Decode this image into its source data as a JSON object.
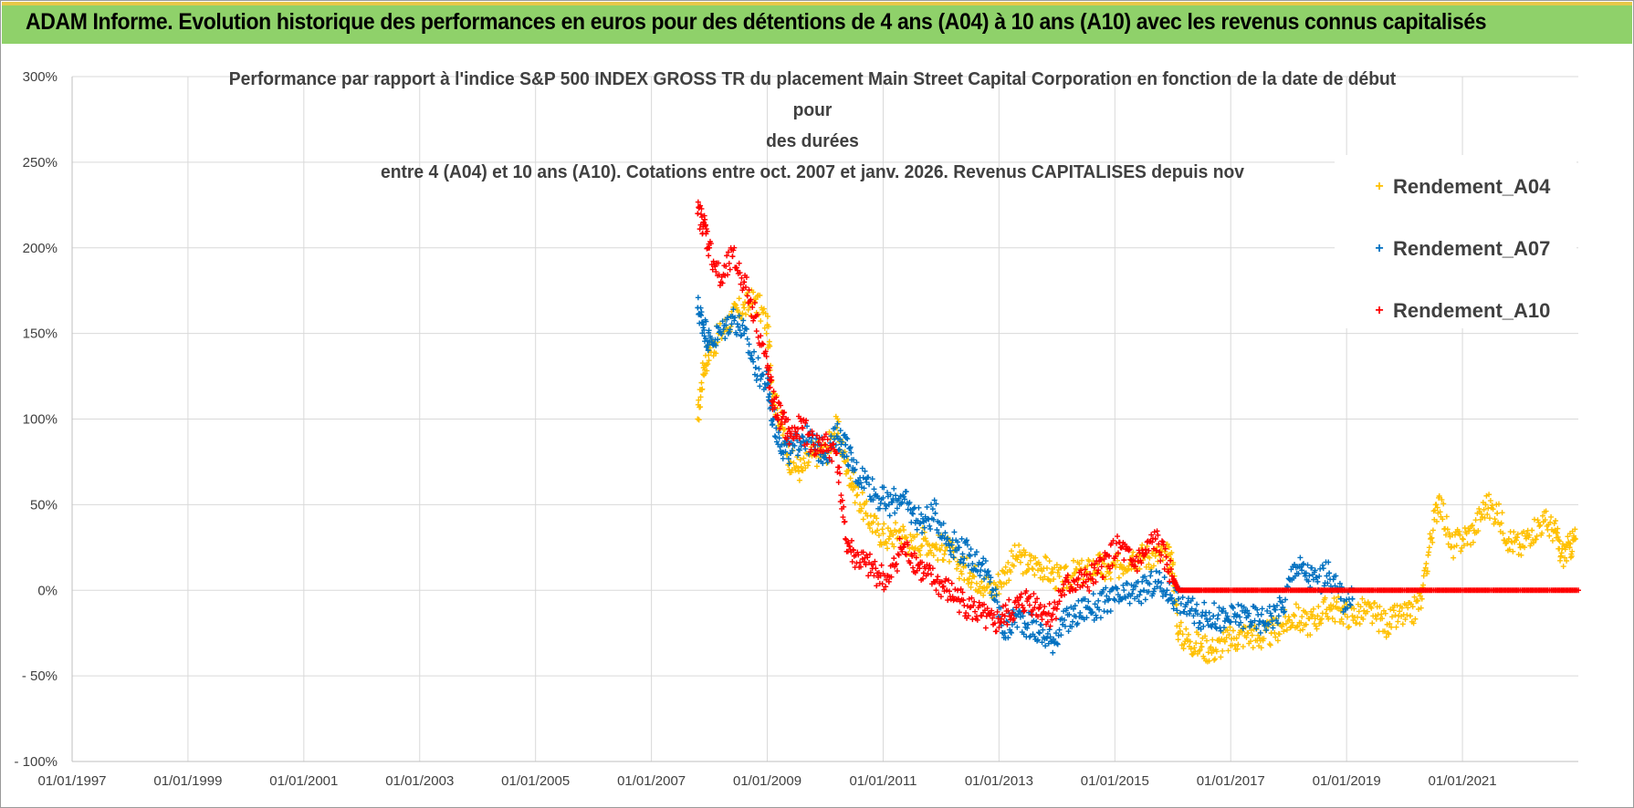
{
  "header": {
    "title": "ADAM Informe. Evolution historique des performances en euros pour des détentions de 4 ans (A04) à 10 ans (A10) avec les revenus connus capitalisés"
  },
  "chart_data": {
    "type": "scatter",
    "title_lines": [
      "Performance par rapport à l'indice S&P 500 INDEX GROSS TR  du placement Main Street Capital Corporation en fonction de la date de début pour",
      "des durées",
      "entre 4 (A04) et 10 ans (A10).  Cotations entre oct. 2007 et janv. 2026.  Revenus CAPITALISES  depuis nov"
    ],
    "xlabel": "",
    "ylabel": "",
    "x_ticks": [
      "01/01/1997",
      "01/01/1999",
      "01/01/2001",
      "01/01/2003",
      "01/01/2005",
      "01/01/2007",
      "01/01/2009",
      "01/01/2011",
      "01/01/2013",
      "01/01/2015",
      "01/01/2017",
      "01/01/2019",
      "01/01/2021"
    ],
    "xlim": [
      1997.0,
      2023.0
    ],
    "y_ticks": [
      "300%",
      "250%",
      "200%",
      "150%",
      "100%",
      "50%",
      "0%",
      "- 50%",
      "- 100%"
    ],
    "ylim": [
      -100,
      300
    ],
    "grid": true,
    "legend_position": "top-right",
    "series": [
      {
        "name": "Rendement_A04",
        "color": "#FFC000",
        "points": [
          [
            2007.8,
            100
          ],
          [
            2007.9,
            130
          ],
          [
            2008.0,
            140
          ],
          [
            2008.2,
            150
          ],
          [
            2008.4,
            160
          ],
          [
            2008.6,
            165
          ],
          [
            2008.8,
            170
          ],
          [
            2009.0,
            155
          ],
          [
            2009.1,
            115
          ],
          [
            2009.25,
            95
          ],
          [
            2009.4,
            75
          ],
          [
            2009.6,
            70
          ],
          [
            2009.8,
            80
          ],
          [
            2010.0,
            80
          ],
          [
            2010.2,
            95
          ],
          [
            2010.35,
            75
          ],
          [
            2010.5,
            60
          ],
          [
            2010.7,
            45
          ],
          [
            2010.9,
            35
          ],
          [
            2011.1,
            30
          ],
          [
            2011.3,
            35
          ],
          [
            2011.5,
            25
          ],
          [
            2011.7,
            30
          ],
          [
            2011.9,
            25
          ],
          [
            2012.1,
            25
          ],
          [
            2012.3,
            15
          ],
          [
            2012.5,
            10
          ],
          [
            2012.7,
            5
          ],
          [
            2012.9,
            0
          ],
          [
            2013.1,
            10
          ],
          [
            2013.3,
            20
          ],
          [
            2013.5,
            15
          ],
          [
            2013.7,
            15
          ],
          [
            2013.9,
            10
          ],
          [
            2014.1,
            5
          ],
          [
            2014.3,
            10
          ],
          [
            2014.5,
            10
          ],
          [
            2014.7,
            15
          ],
          [
            2014.9,
            10
          ],
          [
            2015.1,
            15
          ],
          [
            2015.3,
            20
          ],
          [
            2015.5,
            20
          ],
          [
            2015.7,
            20
          ],
          [
            2015.9,
            20
          ],
          [
            2016.0,
            15
          ],
          [
            2016.1,
            -25
          ],
          [
            2016.3,
            -30
          ],
          [
            2016.5,
            -33
          ],
          [
            2016.7,
            -35
          ],
          [
            2016.9,
            -30
          ],
          [
            2017.1,
            -28
          ],
          [
            2017.3,
            -25
          ],
          [
            2017.5,
            -28
          ],
          [
            2017.7,
            -25
          ],
          [
            2017.9,
            -20
          ],
          [
            2018.1,
            -15
          ],
          [
            2018.3,
            -20
          ],
          [
            2018.5,
            -15
          ],
          [
            2018.7,
            -10
          ],
          [
            2018.9,
            -12
          ],
          [
            2019.1,
            -15
          ],
          [
            2019.3,
            -12
          ],
          [
            2019.5,
            -15
          ],
          [
            2019.7,
            -20
          ],
          [
            2019.9,
            -15
          ],
          [
            2020.1,
            -15
          ],
          [
            2020.3,
            -5
          ],
          [
            2020.45,
            30
          ],
          [
            2020.6,
            55
          ],
          [
            2020.8,
            25
          ],
          [
            2021.0,
            30
          ],
          [
            2021.2,
            35
          ],
          [
            2021.4,
            50
          ],
          [
            2021.6,
            45
          ],
          [
            2021.8,
            30
          ],
          [
            2022.0,
            25
          ],
          [
            2022.2,
            35
          ],
          [
            2022.4,
            40
          ],
          [
            2022.6,
            35
          ],
          [
            2022.7,
            20
          ],
          [
            2022.85,
            25
          ],
          [
            2022.95,
            30
          ]
        ]
      },
      {
        "name": "Rendement_A07",
        "color": "#0070C0",
        "points": [
          [
            2007.8,
            165
          ],
          [
            2007.9,
            155
          ],
          [
            2008.0,
            145
          ],
          [
            2008.2,
            150
          ],
          [
            2008.4,
            160
          ],
          [
            2008.6,
            150
          ],
          [
            2008.8,
            130
          ],
          [
            2009.0,
            120
          ],
          [
            2009.1,
            100
          ],
          [
            2009.25,
            85
          ],
          [
            2009.4,
            80
          ],
          [
            2009.6,
            90
          ],
          [
            2009.8,
            85
          ],
          [
            2010.0,
            80
          ],
          [
            2010.2,
            90
          ],
          [
            2010.35,
            85
          ],
          [
            2010.5,
            70
          ],
          [
            2010.7,
            65
          ],
          [
            2010.9,
            55
          ],
          [
            2011.1,
            50
          ],
          [
            2011.3,
            55
          ],
          [
            2011.5,
            45
          ],
          [
            2011.7,
            40
          ],
          [
            2011.9,
            45
          ],
          [
            2012.1,
            30
          ],
          [
            2012.3,
            25
          ],
          [
            2012.5,
            20
          ],
          [
            2012.7,
            15
          ],
          [
            2012.9,
            0
          ],
          [
            2013.1,
            -25
          ],
          [
            2013.3,
            -15
          ],
          [
            2013.5,
            -20
          ],
          [
            2013.7,
            -25
          ],
          [
            2013.9,
            -30
          ],
          [
            2014.1,
            -20
          ],
          [
            2014.3,
            -15
          ],
          [
            2014.5,
            -10
          ],
          [
            2014.7,
            -10
          ],
          [
            2014.9,
            -5
          ],
          [
            2015.1,
            -5
          ],
          [
            2015.3,
            -2
          ],
          [
            2015.5,
            0
          ],
          [
            2015.7,
            5
          ],
          [
            2015.9,
            0
          ],
          [
            2016.1,
            -5
          ],
          [
            2016.3,
            -12
          ],
          [
            2016.5,
            -15
          ],
          [
            2016.7,
            -15
          ],
          [
            2016.9,
            -18
          ],
          [
            2017.1,
            -15
          ],
          [
            2017.3,
            -15
          ],
          [
            2017.5,
            -18
          ],
          [
            2017.7,
            -15
          ],
          [
            2017.9,
            -10
          ],
          [
            2018.1,
            15
          ],
          [
            2018.3,
            10
          ],
          [
            2018.5,
            5
          ],
          [
            2018.7,
            10
          ],
          [
            2018.9,
            -5
          ],
          [
            2019.1,
            -5
          ]
        ]
      },
      {
        "name": "Rendement_A10",
        "color": "#FF0000",
        "points": [
          [
            2007.8,
            220
          ],
          [
            2007.9,
            215
          ],
          [
            2008.0,
            200
          ],
          [
            2008.2,
            180
          ],
          [
            2008.4,
            195
          ],
          [
            2008.6,
            180
          ],
          [
            2008.8,
            160
          ],
          [
            2009.0,
            130
          ],
          [
            2009.1,
            110
          ],
          [
            2009.25,
            100
          ],
          [
            2009.4,
            90
          ],
          [
            2009.6,
            95
          ],
          [
            2009.8,
            85
          ],
          [
            2010.0,
            85
          ],
          [
            2010.2,
            80
          ],
          [
            2010.35,
            30
          ],
          [
            2010.5,
            20
          ],
          [
            2010.7,
            15
          ],
          [
            2010.9,
            10
          ],
          [
            2011.1,
            5
          ],
          [
            2011.3,
            25
          ],
          [
            2011.5,
            20
          ],
          [
            2011.7,
            10
          ],
          [
            2011.9,
            5
          ],
          [
            2012.1,
            0
          ],
          [
            2012.3,
            -5
          ],
          [
            2012.5,
            -10
          ],
          [
            2012.7,
            -15
          ],
          [
            2012.9,
            -20
          ],
          [
            2013.1,
            -15
          ],
          [
            2013.3,
            -10
          ],
          [
            2013.5,
            -5
          ],
          [
            2013.7,
            -10
          ],
          [
            2013.9,
            -15
          ],
          [
            2014.1,
            0
          ],
          [
            2014.3,
            5
          ],
          [
            2014.5,
            5
          ],
          [
            2014.7,
            10
          ],
          [
            2014.9,
            20
          ],
          [
            2015.1,
            25
          ],
          [
            2015.3,
            15
          ],
          [
            2015.5,
            20
          ],
          [
            2015.7,
            30
          ],
          [
            2015.9,
            15
          ],
          [
            2016.1,
            0
          ],
          [
            2016.5,
            0
          ],
          [
            2017.0,
            0
          ],
          [
            2017.5,
            0
          ],
          [
            2018.0,
            0
          ],
          [
            2018.5,
            0
          ],
          [
            2019.0,
            0
          ],
          [
            2019.5,
            0
          ],
          [
            2020.0,
            0
          ],
          [
            2020.5,
            0
          ],
          [
            2021.0,
            0
          ],
          [
            2021.5,
            0
          ],
          [
            2022.0,
            0
          ],
          [
            2022.5,
            0
          ],
          [
            2023.0,
            0
          ]
        ]
      }
    ]
  }
}
